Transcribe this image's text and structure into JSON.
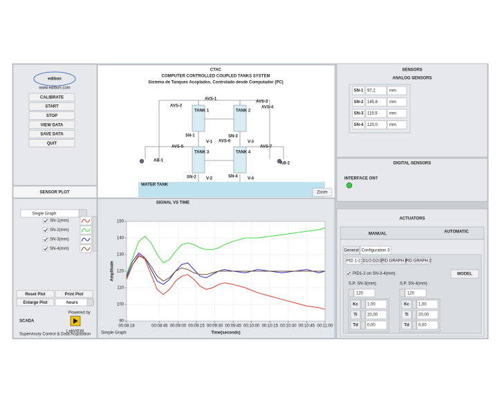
{
  "logo": {
    "name": "edibon",
    "url": "www.edibon.com"
  },
  "control_panel": {
    "buttons": [
      "CALIBRATE",
      "START",
      "STOP",
      "VIEW DATA",
      "SAVE DATA",
      "QUIT"
    ]
  },
  "diagram": {
    "title": "CTAC",
    "subtitle": "COMPUTER CONTROLLED COUPLED TANKS SYSTEM",
    "subtitle2": "Sistema de Tanques Acoplados, Controlado desde Computador (PC)",
    "labels": [
      "AVS-1",
      "AVS-2",
      "AVS-3",
      "AVS-4",
      "AVS-5",
      "AVS-6",
      "AVS-7",
      "SN-1",
      "SN-2",
      "SN-3",
      "SN-4",
      "V-1",
      "V-2",
      "V-3",
      "V-4",
      "AB-1",
      "AB-2",
      "TANK 1",
      "TANK 2",
      "TANK 3",
      "TANK 4",
      "WATER TANK"
    ],
    "zoom": "Zoom"
  },
  "sensors": {
    "title": "SENSORS",
    "analog_title": "ANALOG SENSORS",
    "analog": [
      {
        "name": "SN-1",
        "value": "97,2",
        "unit": "mm"
      },
      {
        "name": "SN-2",
        "value": "145,8",
        "unit": "mm"
      },
      {
        "name": "SN-3",
        "value": "119,9",
        "unit": "mm"
      },
      {
        "name": "SN-4",
        "value": "120,0",
        "unit": "mm"
      }
    ],
    "digital_title": "DIGITAL SENSORS",
    "interface": "INTERFACE ON?"
  },
  "actuators": {
    "title": "ACTUATORS",
    "tabs": [
      "MANUAL",
      "AUTOMATIC"
    ],
    "subtabs": [
      "General",
      "Configuration 3"
    ],
    "pid_tabs": [
      "PID 1-2",
      "D1/2-D2/1",
      "PID GRAPH 1",
      "PID GRAPH 2"
    ],
    "pid_enable": "PID1-2 on SN-3-4(mm)",
    "model": "MODEL",
    "setpoints": [
      {
        "label": "S.P. SN-3(mm)",
        "value": "120",
        "params": [
          {
            "name": "Kc",
            "value": "1,00"
          },
          {
            "name": "Ti",
            "value": "20,00"
          },
          {
            "name": "Td",
            "value": "0,00"
          }
        ]
      },
      {
        "label": "S.P. SN-4(mm)",
        "value": "120",
        "params": [
          {
            "name": "Kc",
            "value": "1,00"
          },
          {
            "name": "Ti",
            "value": "20,00"
          },
          {
            "name": "Td",
            "value": "0,00"
          }
        ]
      }
    ]
  },
  "sensor_plot": {
    "title": "SENSOR PLOT",
    "mode": "Single Graph",
    "buttons": [
      "Reset Plot",
      "Print Plot",
      "Enlarge Plot"
    ],
    "time_unit": "hours",
    "footer": "Simple Graph"
  },
  "brand": {
    "scada": "SCADA",
    "scada_sub": "Supervisory Control & Data Acquisition",
    "powered": "Powered by",
    "labview": "LabVIEW"
  },
  "chart_data": {
    "type": "line",
    "title": "SIGNAL VS TIME",
    "x_label": "Time(seconds)",
    "y_label": "Amplitude",
    "x": [
      498,
      503,
      508,
      513,
      518,
      523,
      528,
      533,
      538,
      543,
      548,
      553,
      558,
      563,
      568,
      573,
      578,
      585,
      595,
      605,
      615,
      625,
      635,
      645,
      655,
      660
    ],
    "xlim": [
      498,
      660
    ],
    "xticks": [
      {
        "value": 498,
        "label": "00:08:18"
      },
      {
        "value": 525,
        "label": "00:08:45"
      },
      {
        "value": 540,
        "label": "00:09:00"
      },
      {
        "value": 555,
        "label": "00:09:15"
      },
      {
        "value": 570,
        "label": "00:09:30"
      },
      {
        "value": 585,
        "label": "00:09:45"
      },
      {
        "value": 600,
        "label": "00:10:00"
      },
      {
        "value": 615,
        "label": "00:10:15"
      },
      {
        "value": 630,
        "label": "00:10:30"
      },
      {
        "value": 645,
        "label": "00:10:45"
      },
      {
        "value": 660,
        "label": "00:11:00"
      }
    ],
    "ylim": [
      90,
      150
    ],
    "yticks": [
      90,
      100,
      110,
      120,
      130,
      140,
      150
    ],
    "grid": true,
    "series": [
      {
        "name": "SN-1(mm)",
        "color": "#e03b2f",
        "values": [
          115,
          124,
          130,
          127,
          118,
          109,
          106,
          109,
          114,
          117,
          118,
          115,
          111,
          109,
          110,
          112,
          113,
          112,
          110,
          107,
          105,
          103,
          101,
          99,
          98,
          97
        ]
      },
      {
        "name": "SN-2(mm)",
        "color": "#3ddc3d",
        "values": [
          118,
          128,
          138,
          141,
          137,
          130,
          125,
          127,
          132,
          136,
          137,
          136,
          134,
          133,
          133,
          134,
          136,
          138,
          140,
          140,
          141,
          142,
          143,
          144,
          145,
          146
        ]
      },
      {
        "name": "SN-3(mm)",
        "color": "#2a2ac8",
        "values": [
          117,
          126,
          131,
          128,
          121,
          114,
          112,
          115,
          120,
          124,
          125,
          121,
          117,
          116,
          118,
          120,
          121,
          120,
          119,
          121,
          120,
          119,
          120,
          121,
          119,
          120
        ]
      },
      {
        "name": "SN-4(mm)",
        "color": "#7a4a2a",
        "values": [
          116,
          124,
          129,
          128,
          123,
          117,
          114,
          116,
          120,
          122,
          121,
          119,
          118,
          118,
          119,
          120,
          120,
          120,
          120,
          120,
          120,
          120,
          120,
          120,
          120,
          120
        ]
      }
    ]
  }
}
